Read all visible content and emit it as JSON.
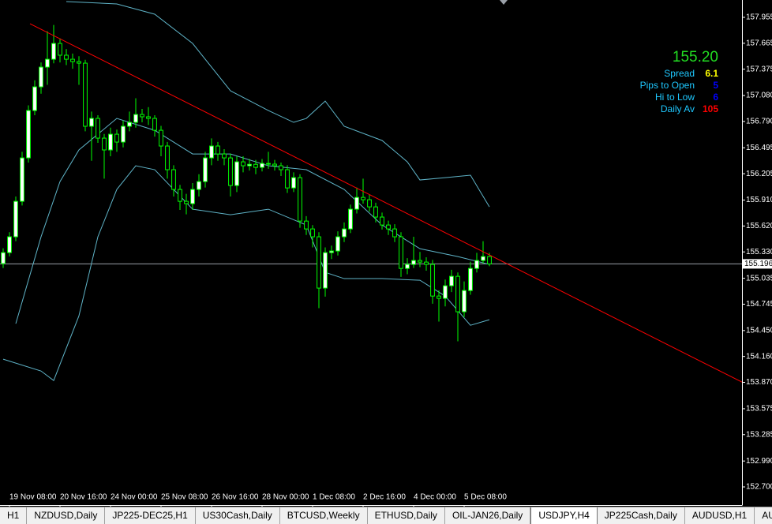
{
  "chart_data": {
    "type": "candlestick",
    "categories": [
      null,
      "19 Nov 08:00",
      null,
      null,
      null,
      null,
      null,
      null,
      null,
      "20 Nov 16:00",
      null,
      null,
      null,
      null,
      null,
      null,
      null,
      "24 Nov 00:00",
      null,
      null,
      null,
      null,
      null,
      null,
      null,
      "25 Nov 08:00",
      null,
      null,
      null,
      null,
      null,
      null,
      null,
      "26 Nov 16:00",
      null,
      null,
      null,
      null,
      null,
      null,
      null,
      "28 Nov 00:00",
      null,
      null,
      null,
      null,
      null,
      null,
      null,
      "1 Dec 08:00",
      null,
      null,
      null,
      null,
      null,
      null,
      null,
      "2 Dec 16:00",
      null,
      null,
      null,
      null,
      null,
      null,
      null,
      "4 Dec 00:00",
      null,
      null,
      null,
      null,
      null,
      null,
      null,
      "5 Dec 08:00",
      null,
      null,
      null,
      null
    ],
    "open": [
      155.2,
      155.322,
      155.499,
      155.896,
      156.382,
      156.912,
      157.177,
      157.398,
      157.486,
      157.663,
      157.531,
      157.486,
      157.46,
      157.442,
      156.736,
      156.824,
      156.603,
      156.471,
      156.647,
      156.559,
      156.736,
      156.78,
      156.868,
      156.842,
      156.824,
      156.691,
      156.515,
      156.25,
      156.029,
      155.896,
      155.87,
      156.029,
      156.117,
      156.382,
      156.515,
      156.426,
      156.382,
      156.073,
      156.338,
      156.294,
      156.31,
      156.276,
      156.32,
      156.312,
      156.294,
      156.25,
      156.046,
      156.161,
      155.675,
      155.587,
      155.499,
      154.925,
      155.322,
      155.34,
      155.499,
      155.587,
      155.808,
      155.94,
      155.914,
      155.834,
      155.72,
      155.631,
      155.587,
      155.499,
      155.145,
      155.19,
      155.234,
      155.216,
      155.19,
      154.836,
      154.81,
      154.951,
      155.057,
      154.66,
      154.898,
      155.145,
      155.234,
      155.278
    ],
    "high": [
      155.37,
      155.55,
      155.95,
      156.45,
      156.97,
      157.25,
      157.45,
      157.8,
      157.87,
      157.72,
      157.6,
      157.55,
      157.52,
      157.48,
      156.9,
      156.86,
      156.65,
      156.72,
      156.7,
      156.8,
      156.9,
      157.05,
      156.93,
      156.95,
      156.86,
      156.74,
      156.56,
      156.3,
      156.08,
      155.98,
      156.1,
      156.2,
      156.45,
      156.6,
      156.56,
      156.48,
      156.43,
      156.4,
      156.4,
      156.37,
      156.36,
      156.37,
      156.45,
      156.36,
      156.33,
      156.3,
      156.22,
      156.2,
      155.73,
      155.63,
      155.55,
      155.38,
      155.4,
      155.56,
      155.66,
      155.86,
      156.05,
      156.15,
      155.97,
      155.88,
      155.77,
      155.68,
      155.64,
      155.55,
      155.26,
      155.5,
      155.33,
      155.27,
      155.24,
      154.9,
      155.02,
      155.13,
      155.1,
      155.0,
      155.22,
      155.32,
      155.45,
      155.32
    ],
    "low": [
      155.15,
      155.28,
      155.45,
      155.85,
      156.33,
      156.86,
      157.1,
      157.2,
      157.44,
      157.45,
      157.42,
      157.38,
      157.2,
      156.68,
      156.35,
      156.55,
      156.15,
      156.4,
      156.45,
      156.5,
      156.68,
      156.72,
      156.78,
      156.75,
      156.62,
      156.4,
      156.15,
      155.95,
      155.8,
      155.75,
      155.8,
      155.95,
      156.05,
      156.3,
      156.35,
      156.3,
      155.95,
      156.0,
      156.22,
      156.24,
      156.2,
      156.23,
      156.26,
      156.24,
      156.18,
      155.99,
      156.0,
      155.6,
      155.52,
      155.38,
      154.7,
      154.83,
      155.25,
      155.29,
      155.44,
      155.54,
      155.76,
      155.87,
      155.78,
      155.66,
      155.58,
      155.52,
      155.44,
      155.05,
      155.08,
      155.15,
      155.16,
      155.12,
      154.75,
      154.55,
      154.72,
      154.88,
      154.33,
      154.6,
      154.85,
      155.1,
      155.2,
      155.17
    ],
    "close": [
      155.322,
      155.499,
      155.896,
      156.382,
      156.912,
      157.177,
      157.398,
      157.486,
      157.663,
      157.531,
      157.486,
      157.46,
      157.442,
      156.736,
      156.824,
      156.603,
      156.471,
      156.647,
      156.559,
      156.736,
      156.78,
      156.868,
      156.842,
      156.824,
      156.691,
      156.515,
      156.25,
      156.029,
      155.896,
      155.87,
      156.029,
      156.117,
      156.382,
      156.515,
      156.426,
      156.382,
      156.073,
      156.338,
      156.294,
      156.31,
      156.276,
      156.32,
      156.312,
      156.294,
      156.25,
      156.046,
      156.161,
      155.675,
      155.587,
      155.499,
      154.925,
      155.322,
      155.34,
      155.499,
      155.587,
      155.808,
      155.94,
      155.914,
      155.834,
      155.72,
      155.631,
      155.587,
      155.499,
      155.145,
      155.19,
      155.234,
      155.216,
      155.19,
      154.836,
      154.81,
      154.951,
      155.057,
      154.66,
      154.898,
      155.145,
      155.234,
      155.278,
      155.196
    ],
    "up_color": "#ffffff",
    "down_color": "#000000",
    "wick_color": "#00ff00",
    "bands": [
      {
        "color": "#5fb4c8",
        "x": [
          10,
          18,
          24,
          30,
          36,
          42,
          46,
          48,
          51,
          54,
          60,
          64,
          66,
          70,
          74,
          77
        ],
        "values": [
          158.131,
          158.105,
          157.99,
          157.663,
          157.133,
          156.912,
          156.78,
          156.824,
          157.018,
          156.736,
          156.577,
          156.338,
          156.135,
          156.161,
          156.188,
          155.834
        ]
      },
      {
        "color": "#5fb4c8",
        "x": [
          2,
          6,
          9,
          12,
          18,
          24,
          30,
          36,
          42,
          48,
          54,
          60,
          66,
          72,
          77
        ],
        "values": [
          154.527,
          155.499,
          156.117,
          156.471,
          156.824,
          156.691,
          156.426,
          156.426,
          156.294,
          156.25,
          156.029,
          155.631,
          155.366,
          155.278,
          155.19
        ]
      },
      {
        "color": "#5fb4c8",
        "x": [
          0,
          6,
          8,
          12,
          15,
          18,
          21,
          24,
          30,
          36,
          42,
          48,
          51,
          54,
          60,
          66,
          70,
          74,
          77
        ],
        "values": [
          154.13,
          153.997,
          153.891,
          154.615,
          155.499,
          156.029,
          156.294,
          156.25,
          155.808,
          155.746,
          155.808,
          155.631,
          155.101,
          155.031,
          155.031,
          155.013,
          154.836,
          154.509,
          154.571
        ]
      }
    ],
    "trendline": {
      "color": "#ff0000",
      "x": [
        4.25,
        117
      ],
      "values": [
        157.884,
        153.873
      ]
    },
    "bid": 155.196,
    "bid_color": "#9aa0a8",
    "xlim": [
      -0.5,
      117
    ],
    "ylim": [
      152.497,
      158.149
    ],
    "yticks": [
      157.955,
      157.665,
      157.375,
      {
        "value": 157.08,
        "label": "157.080"
      },
      {
        "value": 156.79,
        "label": "156.790"
      },
      156.495,
      156.205,
      {
        "value": 155.91,
        "label": "155.910"
      },
      {
        "value": 155.62,
        "label": "155.620"
      },
      {
        "value": 155.33,
        "label": "155.330"
      },
      155.035,
      154.745,
      {
        "value": 154.45,
        "label": "154.450"
      },
      {
        "value": 154.16,
        "label": "154.160"
      },
      {
        "value": 153.87,
        "label": "153.870"
      },
      153.575,
      153.285,
      {
        "value": 152.99,
        "label": "152.990"
      },
      {
        "value": 152.7,
        "label": "152.700"
      }
    ],
    "grid": false
  },
  "info": {
    "price": "155.20",
    "rows": [
      {
        "label": "Spread",
        "value": "6.1",
        "color": "#ffff00"
      },
      {
        "label": "Pips to Open",
        "value": "5",
        "color": "#0000ff"
      },
      {
        "label": "Hi to Low",
        "value": "6",
        "color": "#0000ff"
      },
      {
        "label": "Daily Av",
        "value": "105",
        "color": "#ff0000"
      }
    ]
  },
  "tabs": [
    "H1",
    "NZDUSD,Daily",
    "JP225-DEC25,H1",
    "US30Cash,Daily",
    "BTCUSD,Weekly",
    "ETHUSD,Daily",
    "OIL-JAN26,Daily",
    "USDJPY,H4",
    "JP225Cash,Daily",
    "AUDUSD,H1",
    "AUDJ"
  ],
  "active_tab": 7
}
